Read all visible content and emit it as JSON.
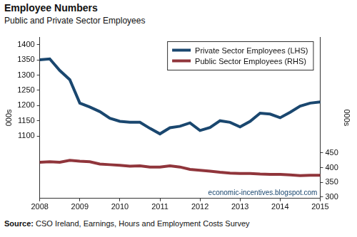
{
  "chart_data": {
    "type": "line",
    "title": "Employee Numbers",
    "subtitle": "Public and Private Sector Employees",
    "source": "Source: CSO Ireland, Earnings, Hours and Employment Costs Survey",
    "annotation": "economic-incentives.blogspot.com",
    "categories": [
      "2008",
      null,
      null,
      null,
      "2009",
      null,
      null,
      null,
      "2010",
      null,
      null,
      null,
      "2011",
      null,
      null,
      null,
      "2012",
      null,
      null,
      null,
      "2013",
      null,
      null,
      null,
      "2014",
      null,
      null,
      null,
      "2015"
    ],
    "series": [
      {
        "name": "Private Sector Employees (LHS)",
        "color": "#1a476f",
        "values": [
          1350,
          1353,
          1315,
          1285,
          1208,
          1195,
          1180,
          1158,
          1148,
          1145,
          1145,
          1125,
          1107,
          1127,
          1132,
          1143,
          1118,
          1128,
          1150,
          1145,
          1130,
          1148,
          1175,
          1172,
          1160,
          1178,
          1198,
          1208,
          1212
        ]
      },
      {
        "name": "Public Sector Employees (RHS)",
        "color": "#90353b",
        "axis": "y2",
        "values": [
          418,
          420,
          418,
          425,
          422,
          420,
          412,
          410,
          408,
          405,
          406,
          402,
          402,
          406,
          402,
          394,
          391,
          388,
          384,
          381,
          380,
          380,
          378,
          377,
          377,
          375,
          373,
          374,
          374
        ]
      }
    ],
    "ylabel": "000s",
    "y2label": "000s",
    "ylim": [
      895,
      1425
    ],
    "yticks": [
      1100,
      1150,
      1200,
      1250,
      1300,
      1350,
      1400
    ],
    "y2lim": [
      295,
      845
    ],
    "y2ticks": [
      300,
      350,
      400,
      450
    ],
    "grid": false,
    "legend": "upper right"
  }
}
